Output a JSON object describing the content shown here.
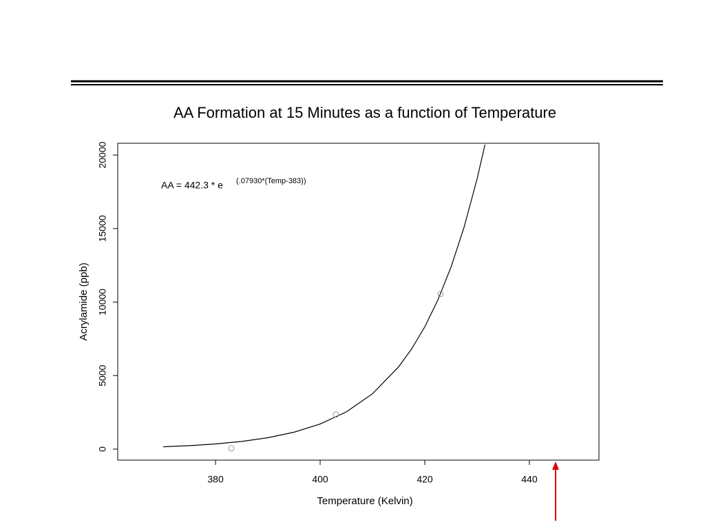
{
  "chart_data": {
    "type": "scatter",
    "title": "AA Formation at 15 Minutes as a function of Temperature",
    "xlabel": "Temperature (Kelvin)",
    "ylabel": "Acrylamide (ppb)",
    "annotation": {
      "text": "AA = 442.3 * e",
      "superscript": "(.07930*(Temp-383))"
    },
    "xlim": [
      361.3,
      453.3
    ],
    "ylim": [
      -750,
      20800
    ],
    "xticks": [
      380,
      400,
      420,
      440
    ],
    "yticks": [
      0,
      5000,
      10000,
      15000,
      20000
    ],
    "series": [
      {
        "x": [
          383,
          403,
          423
        ],
        "values": [
          50,
          2350,
          10550
        ],
        "color": "#999999"
      }
    ],
    "fit": {
      "x": [
        370,
        375,
        380,
        385,
        390,
        395,
        400,
        405,
        410,
        415,
        417.5,
        420,
        422.5,
        425,
        427.5,
        430,
        431.5
      ],
      "values": [
        158,
        235,
        349,
        518,
        771,
        1146,
        1703,
        2531,
        3763,
        5595,
        6821,
        8317,
        10142,
        12363,
        15078,
        18381,
        20700
      ],
      "color": "#000000"
    }
  }
}
